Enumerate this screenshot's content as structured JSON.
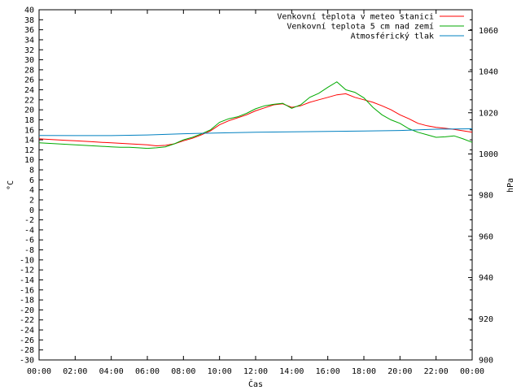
{
  "chart_data": {
    "type": "line",
    "xlabel": "Čas",
    "ylabel_left": "°C",
    "ylabel_right": "hPa",
    "x_ticks": [
      "00:00",
      "02:00",
      "04:00",
      "06:00",
      "08:00",
      "10:00",
      "12:00",
      "14:00",
      "16:00",
      "18:00",
      "20:00",
      "22:00",
      "00:00"
    ],
    "xlim_hours": [
      0,
      24
    ],
    "ylim_left": [
      -30,
      40
    ],
    "ylim_right": [
      900,
      1070
    ],
    "left_ticks": [
      40,
      38,
      36,
      34,
      32,
      30,
      28,
      26,
      24,
      22,
      20,
      18,
      16,
      14,
      12,
      10,
      8,
      6,
      4,
      2,
      0,
      -2,
      -4,
      -6,
      -8,
      -10,
      -12,
      -14,
      -16,
      -18,
      -20,
      -22,
      -24,
      -26,
      -28,
      -30
    ],
    "right_ticks": [
      1060,
      1040,
      1020,
      1000,
      980,
      960,
      940,
      920,
      900
    ],
    "grid": false,
    "legend_position": "top-right",
    "series": [
      {
        "name": "Venkovní teplota v meteo stanici",
        "axis": "left",
        "color": "#ff0000",
        "x": [
          0,
          0.5,
          1,
          1.5,
          2,
          2.5,
          3,
          3.5,
          4,
          4.5,
          5,
          5.5,
          6,
          6.5,
          7,
          7.5,
          8,
          8.5,
          9,
          9.5,
          10,
          10.5,
          11,
          11.5,
          12,
          12.5,
          13,
          13.5,
          14,
          14.5,
          15,
          15.5,
          16,
          16.5,
          17,
          17.5,
          18,
          18.5,
          19,
          19.5,
          20,
          20.5,
          21,
          21.5,
          22,
          22.5,
          23,
          23.5,
          24
        ],
        "values": [
          14.2,
          14.1,
          14.0,
          13.9,
          13.8,
          13.7,
          13.6,
          13.5,
          13.4,
          13.3,
          13.2,
          13.1,
          13.0,
          12.8,
          12.9,
          13.2,
          13.8,
          14.3,
          15.0,
          15.8,
          17.0,
          17.8,
          18.4,
          19.0,
          19.8,
          20.4,
          21.0,
          21.2,
          20.5,
          20.8,
          21.5,
          22.0,
          22.5,
          23.0,
          23.2,
          22.5,
          22.0,
          21.5,
          20.8,
          20.0,
          19.0,
          18.2,
          17.3,
          16.8,
          16.5,
          16.3,
          16.1,
          15.8,
          15.5
        ]
      },
      {
        "name": "Venkovní teplota 5 cm nad zemí",
        "axis": "left",
        "color": "#00aa00",
        "x": [
          0,
          0.5,
          1,
          1.5,
          2,
          2.5,
          3,
          3.5,
          4,
          4.5,
          5,
          5.5,
          6,
          6.5,
          7,
          7.5,
          8,
          8.5,
          9,
          9.5,
          10,
          10.5,
          11,
          11.5,
          12,
          12.5,
          13,
          13.5,
          14,
          14.5,
          15,
          15.5,
          16,
          16.5,
          17,
          17.5,
          18,
          18.5,
          19,
          19.5,
          20,
          20.5,
          21,
          21.5,
          22,
          22.5,
          23,
          23.5,
          24
        ],
        "values": [
          13.4,
          13.3,
          13.2,
          13.1,
          13.0,
          12.9,
          12.8,
          12.7,
          12.6,
          12.5,
          12.5,
          12.4,
          12.3,
          12.4,
          12.6,
          13.2,
          14.0,
          14.5,
          15.2,
          16.0,
          17.5,
          18.2,
          18.6,
          19.3,
          20.2,
          20.8,
          21.1,
          21.3,
          20.3,
          21.0,
          22.5,
          23.3,
          24.5,
          25.6,
          24.0,
          23.5,
          22.4,
          20.5,
          19.0,
          18.0,
          17.3,
          16.2,
          15.5,
          15.0,
          14.5,
          14.6,
          14.8,
          14.2,
          13.5
        ]
      },
      {
        "name": "Atmosférický tlak",
        "axis": "right",
        "color": "#0080c0",
        "x": [
          0,
          2,
          4,
          6,
          8,
          10,
          12,
          14,
          16,
          18,
          20,
          22,
          24
        ],
        "values": [
          1009.0,
          1008.9,
          1008.9,
          1009.2,
          1009.8,
          1010.2,
          1010.5,
          1010.7,
          1010.9,
          1011.1,
          1011.4,
          1012.0,
          1012.2
        ]
      }
    ]
  }
}
